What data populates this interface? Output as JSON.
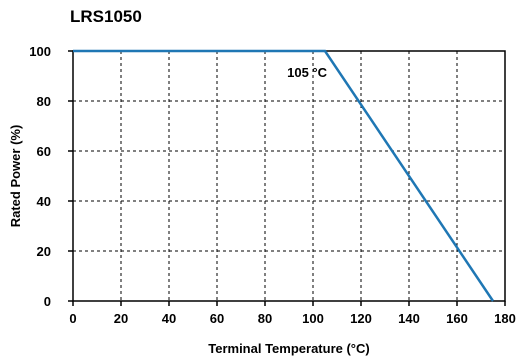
{
  "chart_data": {
    "type": "line",
    "title": "LRS1050",
    "xlabel": "Terminal Temperature (°C)",
    "ylabel": "Rated Power (%)",
    "xlim": [
      0,
      180
    ],
    "ylim": [
      0,
      100
    ],
    "xticks": [
      0,
      20,
      40,
      60,
      80,
      100,
      120,
      140,
      160,
      180
    ],
    "yticks": [
      0,
      20,
      40,
      60,
      80,
      100
    ],
    "grid": true,
    "series": [
      {
        "x": [
          0,
          105,
          175
        ],
        "y": [
          100,
          100,
          0
        ],
        "color": "#1f77b4"
      }
    ],
    "annotations": [
      {
        "text": "105 °C",
        "x": 105,
        "y": 100
      }
    ]
  }
}
